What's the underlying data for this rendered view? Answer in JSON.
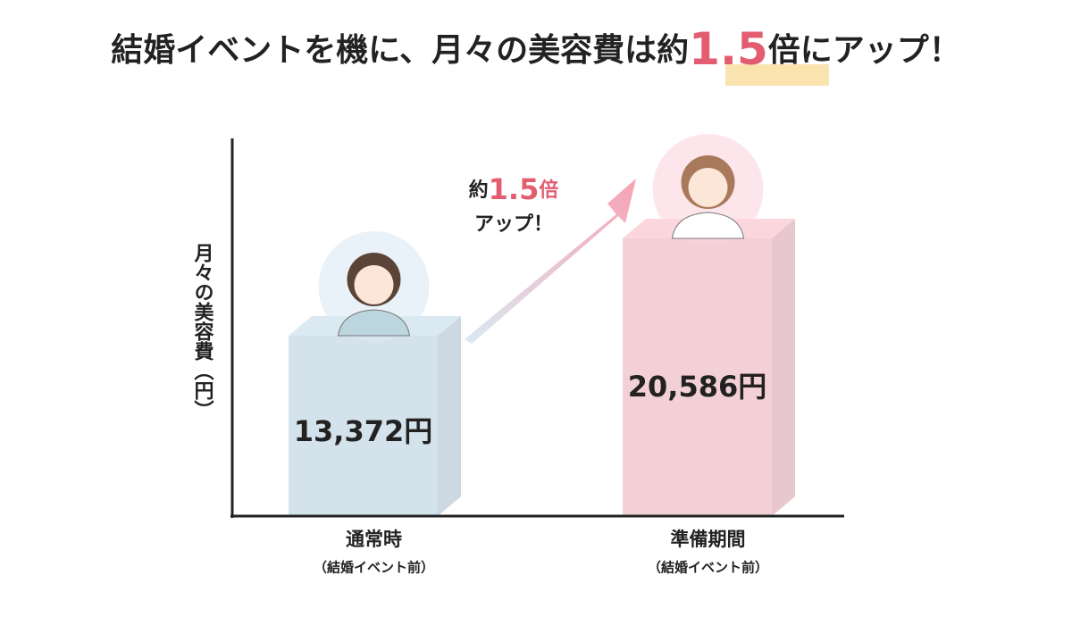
{
  "chart_data": {
    "type": "bar",
    "title": [
      "結婚イベントを機に、月々の美容費は約",
      "1.5",
      "倍にアップ！"
    ],
    "y_label": "月々の美容費（円）",
    "categories": [
      "通常時",
      "準備期間"
    ],
    "category_notes": [
      "（結婚イベント前）",
      "（結婚イベント前）"
    ],
    "values": [
      13372,
      20586
    ],
    "value_labels": [
      "13,372円",
      "20,586円"
    ],
    "colors": [
      "#dbe9f3",
      "#fbd6dd"
    ],
    "label_colors": [
      "#3f7fa2",
      "#e35d70"
    ],
    "ylim": [
      0,
      28000
    ],
    "annotation": {
      "prefix": "約",
      "value": "1.5",
      "suffix": "倍",
      "line2": "アップ！"
    }
  }
}
